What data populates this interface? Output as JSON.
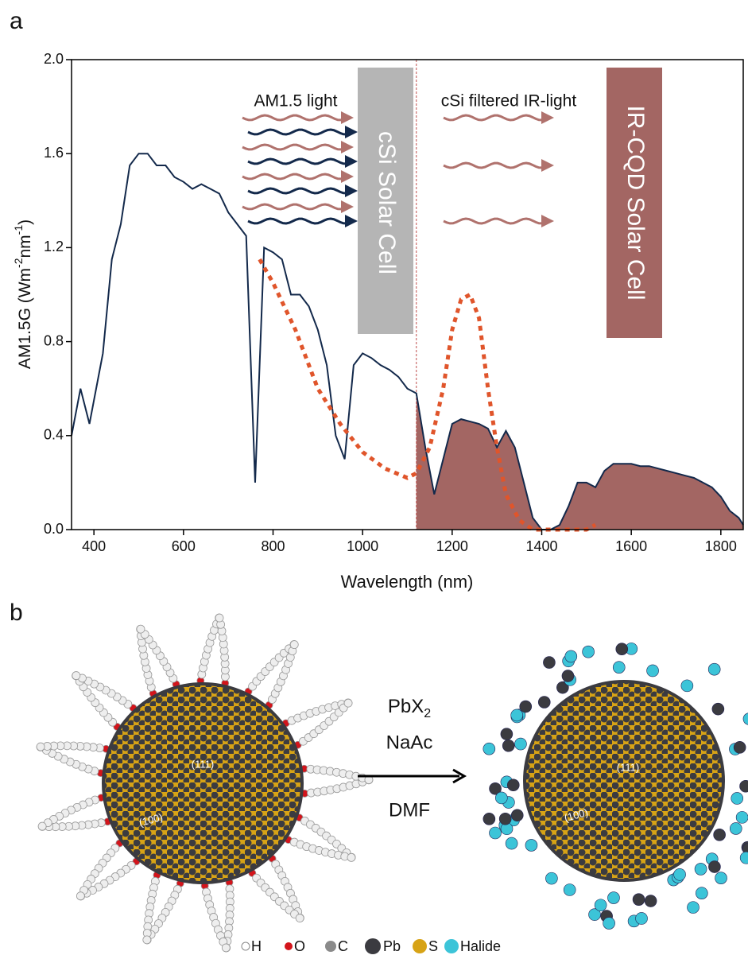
{
  "panel_a_label": "a",
  "chart_data": {
    "type": "line",
    "ylabel_parts": [
      "AM1.5G (Wm",
      "-2",
      "nm",
      "-1",
      ")"
    ],
    "xlabel": "Wavelength (nm)",
    "xlim": [
      350,
      1850
    ],
    "ylim": [
      0,
      2.0
    ],
    "xticks": [
      400,
      600,
      800,
      1000,
      1200,
      1400,
      1600,
      1800
    ],
    "yticks": [
      {
        "value": 0,
        "label": "0.0"
      },
      {
        "value": 0.4,
        "label": "0.4"
      },
      {
        "value": 0.8,
        "label": "0.8"
      },
      {
        "value": 1.2,
        "label": "1.2"
      },
      {
        "value": 1.6,
        "label": "1.6"
      },
      {
        "value": 2.0,
        "label": "2.0"
      }
    ],
    "cutoff": 1120,
    "fill_color": "#a36663",
    "series": [
      {
        "color": "#13294b",
        "style": "solid",
        "x": [
          350,
          370,
          390,
          400,
          420,
          440,
          460,
          480,
          500,
          520,
          540,
          560,
          580,
          600,
          620,
          640,
          660,
          680,
          700,
          720,
          740,
          760,
          780,
          800,
          820,
          840,
          860,
          880,
          900,
          920,
          940,
          960,
          980,
          1000,
          1020,
          1040,
          1060,
          1080,
          1100,
          1120,
          1140,
          1160,
          1180,
          1200,
          1220,
          1240,
          1260,
          1280,
          1300,
          1320,
          1340,
          1360,
          1380,
          1400,
          1420,
          1440,
          1460,
          1480,
          1500,
          1520,
          1540,
          1560,
          1580,
          1600,
          1620,
          1640,
          1660,
          1680,
          1700,
          1720,
          1740,
          1760,
          1780,
          1800,
          1820,
          1840,
          1850
        ],
        "values": [
          0.4,
          0.6,
          0.45,
          0.55,
          0.75,
          1.15,
          1.3,
          1.55,
          1.6,
          1.6,
          1.55,
          1.55,
          1.5,
          1.48,
          1.45,
          1.47,
          1.45,
          1.43,
          1.35,
          1.3,
          1.25,
          0.2,
          1.2,
          1.18,
          1.15,
          1.0,
          1.0,
          0.95,
          0.85,
          0.7,
          0.4,
          0.3,
          0.7,
          0.75,
          0.73,
          0.7,
          0.68,
          0.65,
          0.6,
          0.58,
          0.35,
          0.15,
          0.3,
          0.45,
          0.47,
          0.46,
          0.45,
          0.43,
          0.35,
          0.42,
          0.35,
          0.2,
          0.05,
          0,
          0,
          0.02,
          0.1,
          0.2,
          0.2,
          0.18,
          0.25,
          0.28,
          0.28,
          0.28,
          0.27,
          0.27,
          0.26,
          0.25,
          0.24,
          0.23,
          0.22,
          0.2,
          0.18,
          0.14,
          0.08,
          0.05,
          0.02
        ]
      },
      {
        "color": "#e0552b",
        "style": "dotted",
        "x": [
          770,
          800,
          850,
          900,
          950,
          1000,
          1050,
          1100,
          1120,
          1150,
          1180,
          1200,
          1220,
          1240,
          1260,
          1280,
          1300,
          1320,
          1350,
          1380,
          1400,
          1500,
          1520
        ],
        "values": [
          1.15,
          1.05,
          0.85,
          0.6,
          0.45,
          0.33,
          0.26,
          0.22,
          0.24,
          0.35,
          0.6,
          0.85,
          0.98,
          1.0,
          0.9,
          0.6,
          0.35,
          0.15,
          0.04,
          0,
          0,
          0,
          0.02
        ]
      }
    ],
    "annotations": {
      "am15_light": "AM1.5 light",
      "filtered": "cSi filtered IR-light",
      "csi_cell": "cSi Solar Cell",
      "cqd_cell": "IR-CQD Solar Cell"
    }
  },
  "panel_b": {
    "label": "b",
    "reagent_parts": [
      "PbX",
      "2"
    ],
    "additive": "NaAc",
    "solvent": "DMF",
    "left_facets": [
      "(111)",
      "(100)"
    ],
    "right_facets": [
      "(111)",
      "(100)"
    ],
    "legend": [
      "H",
      "O",
      "C",
      "Pb",
      "S",
      "Halide"
    ]
  }
}
